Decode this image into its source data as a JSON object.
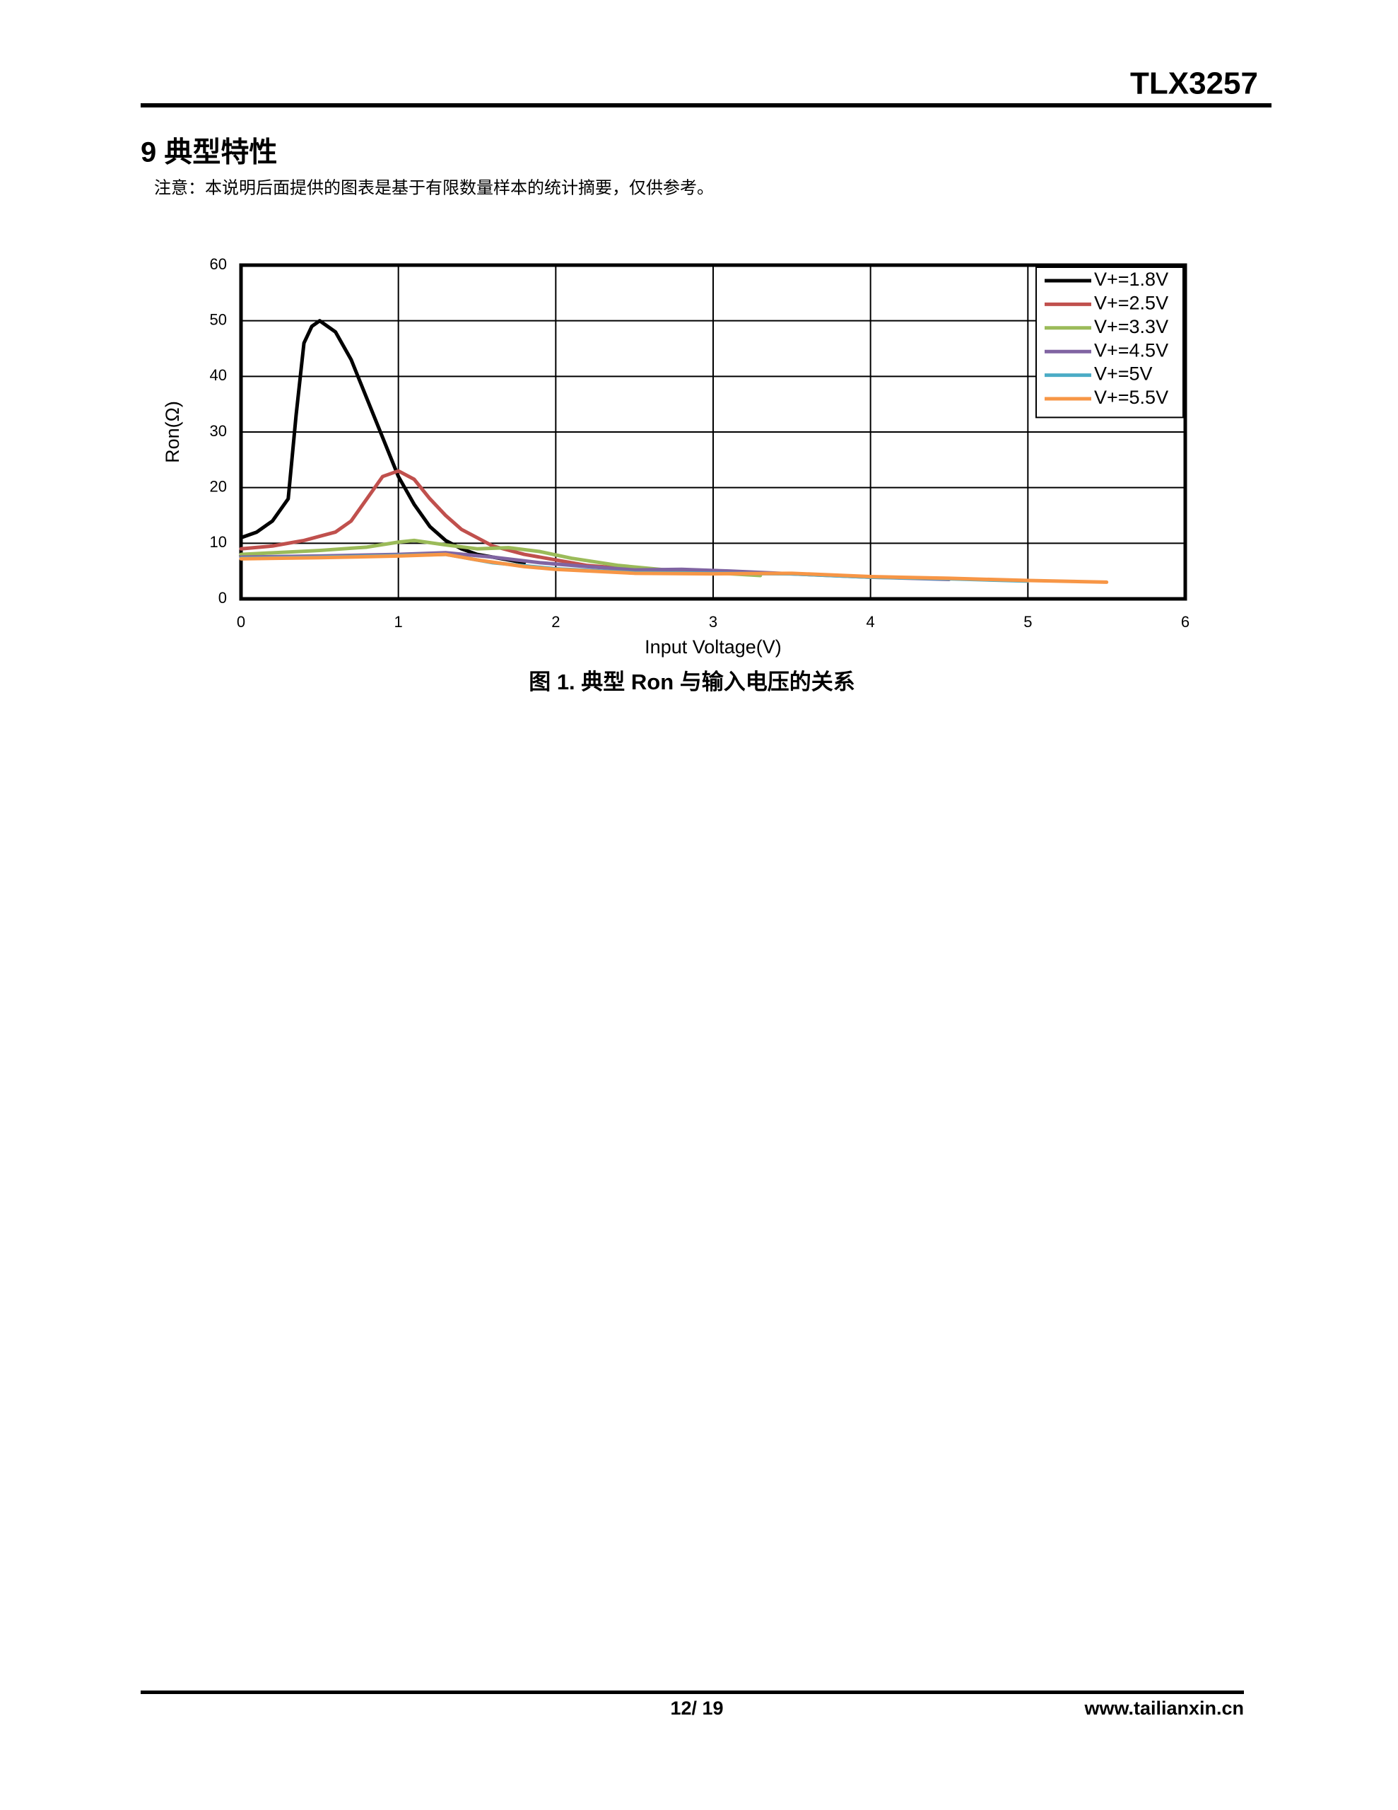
{
  "header": {
    "title": "TLX3257"
  },
  "section": {
    "title": "9 典型特性",
    "note": "注意：本说明后面提供的图表是基于有限数量样本的统计摘要，仅供参考。"
  },
  "chart_data": {
    "type": "line",
    "x_label": "Input Voltage(V)",
    "y_label": "Ron(Ω)",
    "xlim": [
      0,
      6
    ],
    "xticks": [
      0,
      1,
      2,
      3,
      4,
      5,
      6
    ],
    "ylim": [
      0,
      60
    ],
    "yticks": [
      0,
      10,
      20,
      30,
      40,
      50,
      60
    ],
    "grid": true,
    "legend": "upper right",
    "series": [
      {
        "name": "V+=1.8V",
        "color": "#000000",
        "x": [
          0,
          0.1,
          0.2,
          0.3,
          0.35,
          0.4,
          0.45,
          0.5,
          0.6,
          0.7,
          0.8,
          0.9,
          1.0,
          1.1,
          1.2,
          1.3,
          1.4,
          1.5,
          1.6,
          1.7,
          1.8
        ],
        "values": [
          11,
          12,
          14,
          18,
          33,
          46,
          49,
          50,
          48,
          43,
          36,
          29,
          22,
          17,
          13,
          10.5,
          9,
          8,
          7.5,
          7,
          6.5
        ]
      },
      {
        "name": "V+=2.5V",
        "color": "#c0504d",
        "x": [
          0,
          0.2,
          0.4,
          0.6,
          0.7,
          0.8,
          0.9,
          1.0,
          1.1,
          1.2,
          1.3,
          1.4,
          1.5,
          1.6,
          1.8,
          2.0,
          2.2,
          2.5,
          2.8
        ],
        "values": [
          9,
          9.5,
          10.5,
          12,
          14,
          18,
          22,
          23,
          21.5,
          18,
          15,
          12.5,
          11,
          9.5,
          8,
          7,
          6,
          5.3,
          5
        ]
      },
      {
        "name": "V+=3.3V",
        "color": "#9bbb59",
        "x": [
          0,
          0.5,
          0.8,
          1.0,
          1.1,
          1.3,
          1.5,
          1.7,
          1.9,
          2.1,
          2.4,
          2.7,
          3.0,
          3.3
        ],
        "values": [
          8,
          8.7,
          9.3,
          10.2,
          10.5,
          9.7,
          9,
          9.2,
          8.5,
          7.3,
          6,
          5.2,
          4.7,
          4.2
        ]
      },
      {
        "name": "V+=4.5V",
        "color": "#8064a2",
        "x": [
          0,
          0.5,
          1.0,
          1.3,
          1.6,
          1.9,
          2.2,
          2.5,
          2.8,
          3.1,
          3.5,
          4.0,
          4.5
        ],
        "values": [
          7.5,
          7.7,
          8.0,
          8.3,
          7.5,
          6.5,
          5.8,
          5.2,
          5.3,
          5.0,
          4.5,
          3.9,
          3.5
        ]
      },
      {
        "name": "V+=5V",
        "color": "#4bacc6",
        "x": [
          0,
          0.5,
          1.0,
          1.3,
          1.6,
          2.0,
          2.5,
          3.0,
          3.5,
          4.0,
          4.5,
          5.0
        ],
        "values": [
          7.3,
          7.5,
          7.8,
          8.0,
          6.5,
          5.4,
          4.7,
          4.6,
          4.5,
          3.9,
          3.6,
          3.2
        ]
      },
      {
        "name": "V+=5.5V",
        "color": "#f79646",
        "x": [
          0,
          0.5,
          1.0,
          1.3,
          1.5,
          1.8,
          2.0,
          2.5,
          3.0,
          3.5,
          4.0,
          4.5,
          5.0,
          5.5
        ],
        "values": [
          7.2,
          7.4,
          7.7,
          8.0,
          7.0,
          5.8,
          5.3,
          4.6,
          4.5,
          4.6,
          4.0,
          3.7,
          3.3,
          3.0
        ]
      }
    ]
  },
  "caption": "图 1. 典型 Ron 与输入电压的关系",
  "footer": {
    "page": "12/ 19",
    "url": "www.tailianxin.cn"
  }
}
